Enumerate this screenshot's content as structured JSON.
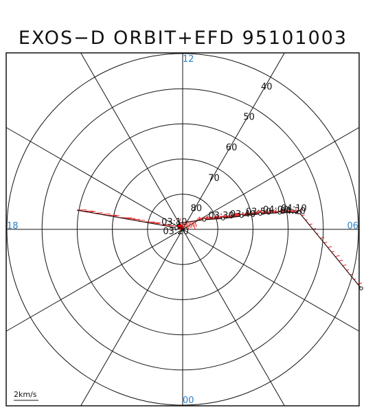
{
  "title": "EXOS−D ORBIT+EFD 95101003",
  "colors": {
    "mlt_labels": "#2a7fc8",
    "vectors": "#e00000",
    "lines": "#111111"
  },
  "lat_rings": [
    {
      "deg": 80,
      "label": "80"
    },
    {
      "deg": 70,
      "label": "70"
    },
    {
      "deg": 60,
      "label": "60"
    },
    {
      "deg": 50,
      "label": "50"
    },
    {
      "deg": 40,
      "label": "40"
    }
  ],
  "mlt_labels": [
    {
      "hour": 12,
      "label": "12"
    },
    {
      "hour": 18,
      "label": "18"
    },
    {
      "hour": 6,
      "label": "06"
    },
    {
      "hour": 0,
      "label": "00"
    }
  ],
  "scale_label": "2km/s",
  "orbit_times": [
    {
      "t": "03:10",
      "mlt": 17.05,
      "lat": 88.2
    },
    {
      "t": "03:20",
      "mlt": 14.4,
      "lat": 87.8
    },
    {
      "t": "03:30",
      "mlt": 7.6,
      "lat": 83.3
    },
    {
      "t": "03:40",
      "mlt": 7.0,
      "lat": 78.1
    },
    {
      "t": "03:50",
      "mlt": 6.85,
      "lat": 72.8
    },
    {
      "t": "04:00",
      "mlt": 6.75,
      "lat": 67.5
    },
    {
      "t": "04:10",
      "mlt": 6.65,
      "lat": 62.0
    },
    {
      "t": "04:20",
      "mlt": 6.55,
      "lat": 56.5
    }
  ]
}
